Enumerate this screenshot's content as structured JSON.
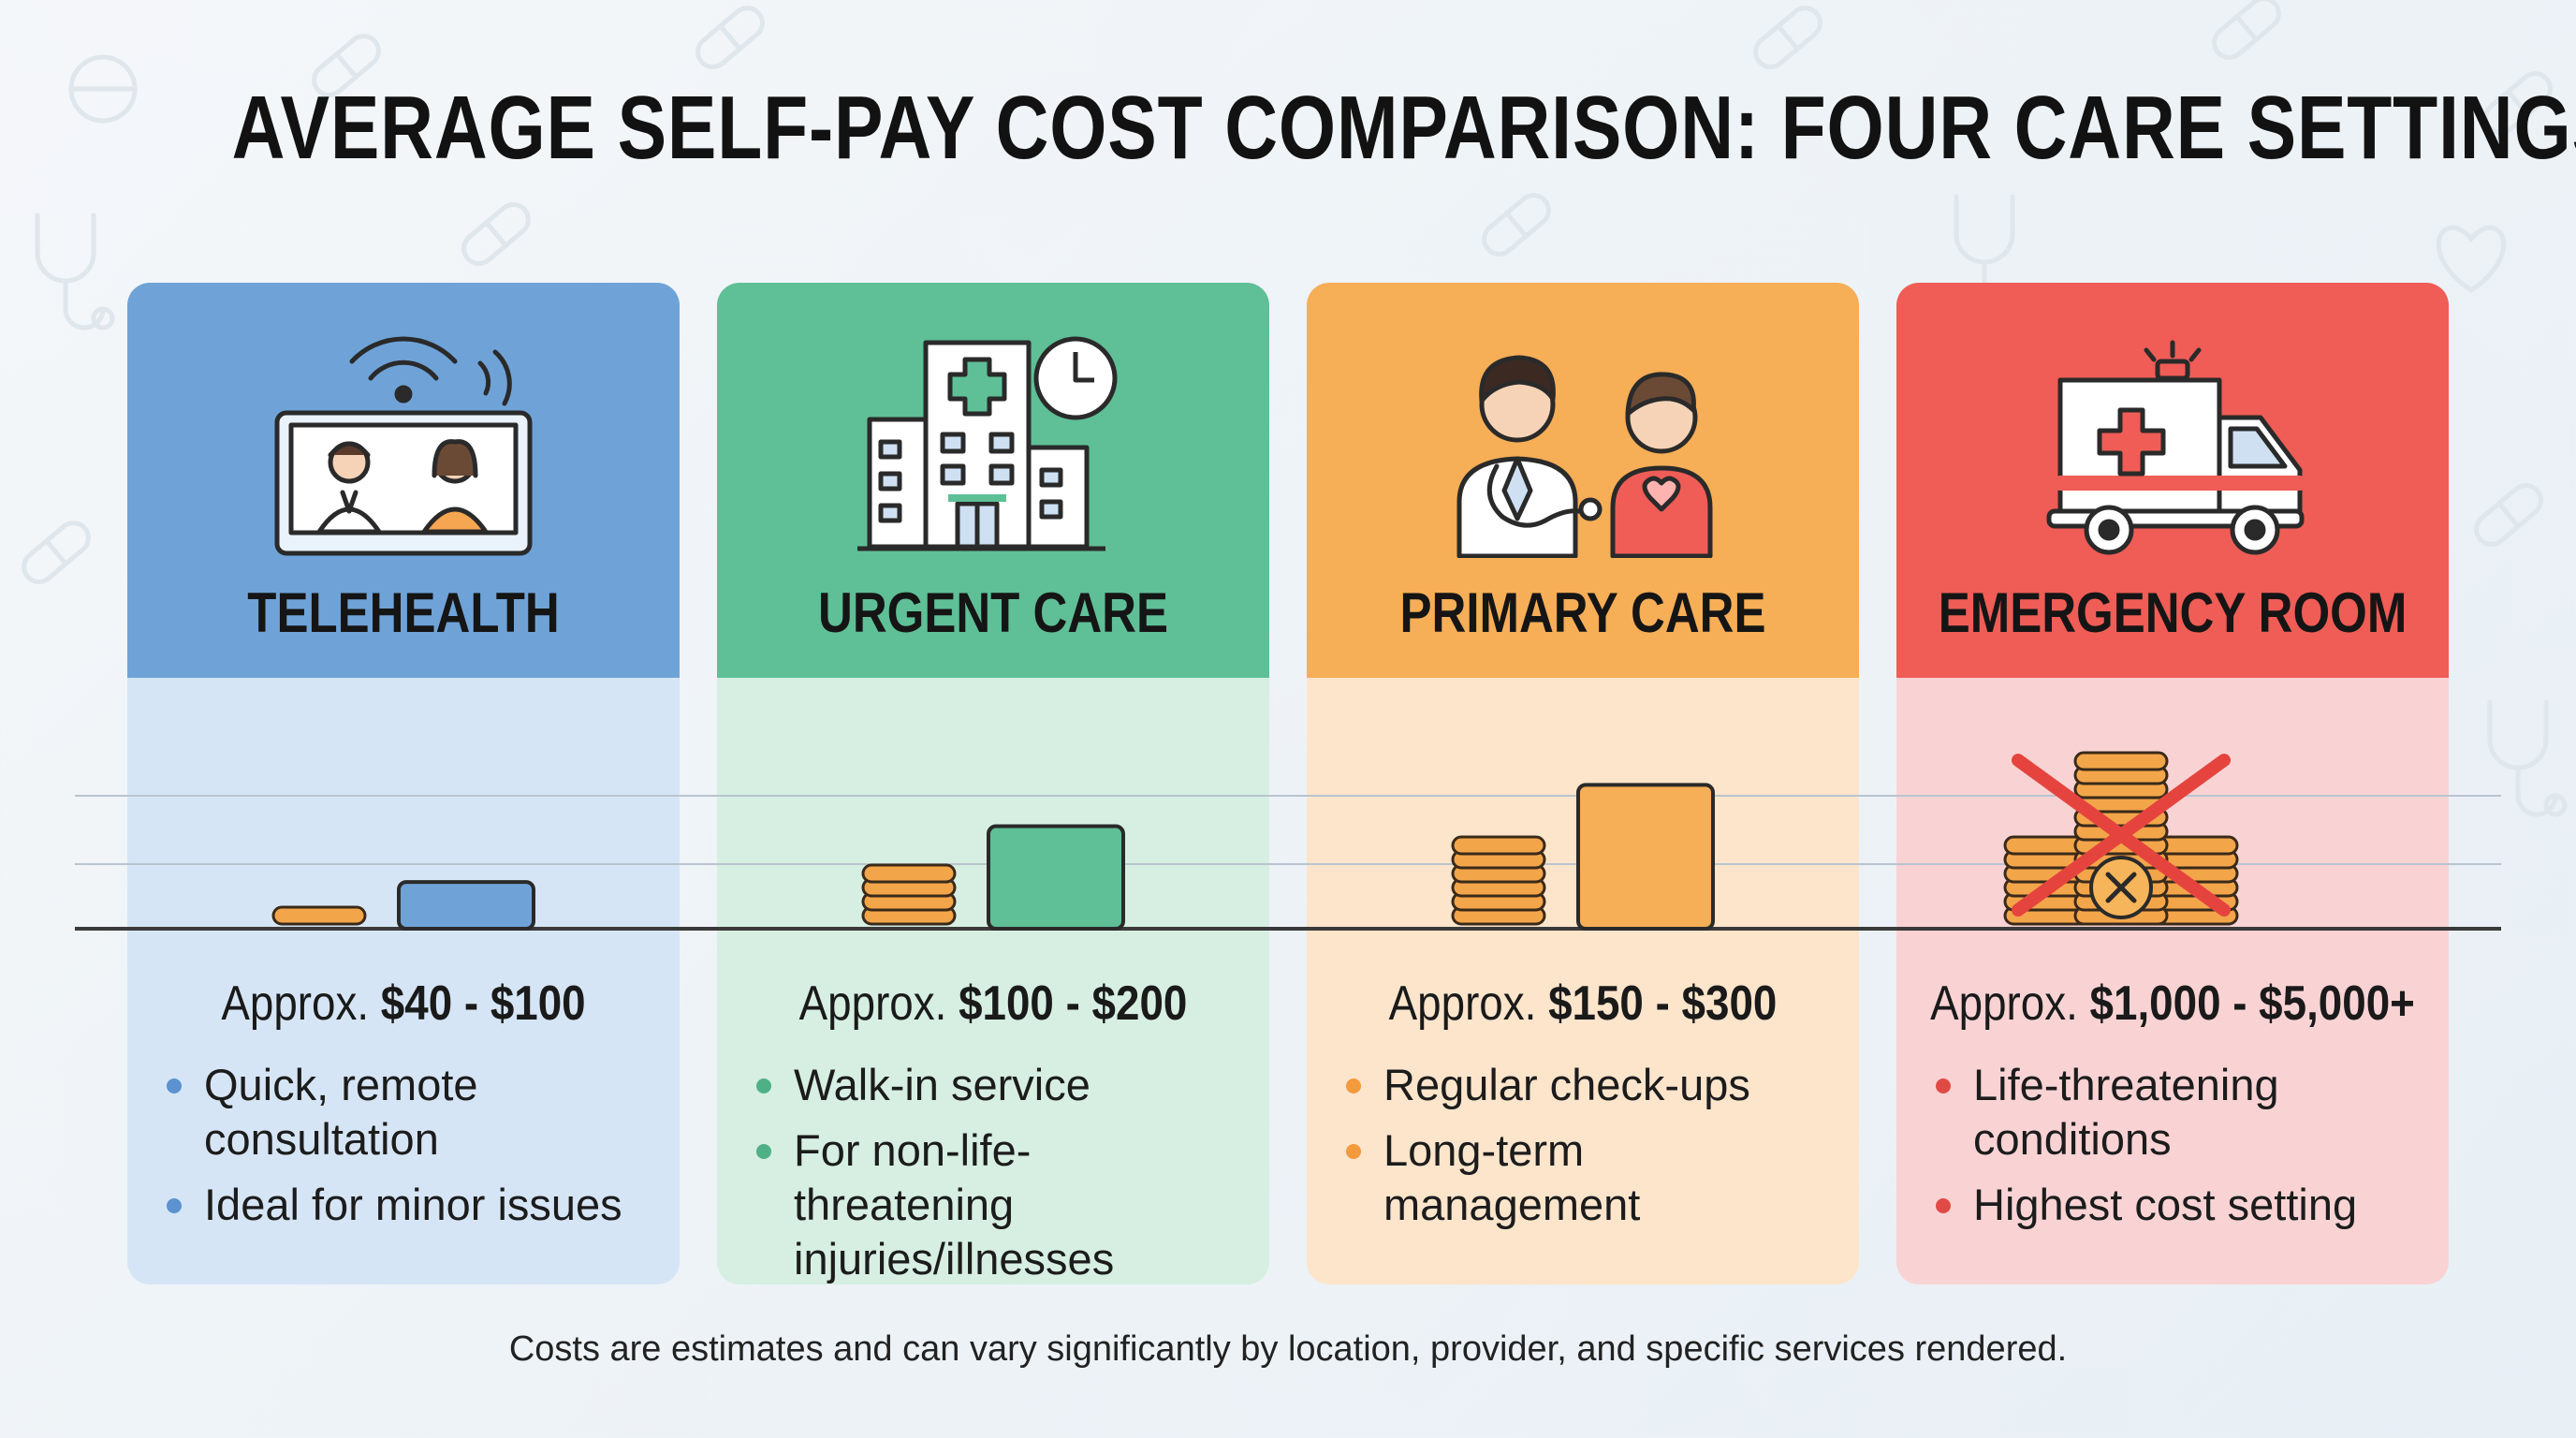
{
  "title": "AVERAGE SELF-PAY COST COMPARISON: FOUR CARE SETTINGS",
  "footnote": "Costs are estimates and can vary significantly by location, provider, and specific services rendered.",
  "cards": [
    {
      "label": "TELEHEALTH",
      "icon": "telehealth-monitor-icon",
      "price_prefix": "Approx.",
      "price": "$40 - $100",
      "bullets": [
        "Quick, remote consultation",
        "Ideal for minor issues"
      ],
      "colors": {
        "head": "#6fa3d8",
        "body": "#d6e5f5",
        "accent": "#6fa3d8",
        "bullet": "#5b92cf"
      }
    },
    {
      "label": "URGENT CARE",
      "icon": "urgent-care-clinic-icon",
      "price_prefix": "Approx.",
      "price": "$100 - $200",
      "bullets": [
        "Walk-in service",
        "For non-life-threatening injuries/illnesses"
      ],
      "colors": {
        "head": "#5fbf97",
        "body": "#d6efe2",
        "accent": "#5fbf97",
        "bullet": "#4fb086"
      }
    },
    {
      "label": "PRIMARY CARE",
      "icon": "doctor-patient-icon",
      "price_prefix": "Approx.",
      "price": "$150 - $300",
      "bullets": [
        "Regular check-ups",
        "Long-term management"
      ],
      "colors": {
        "head": "#f6ae57",
        "body": "#fde5cc",
        "accent": "#f6ae57",
        "bullet": "#f29a3c"
      }
    },
    {
      "label": "EMERGENCY ROOM",
      "icon": "ambulance-icon",
      "price_prefix": "Approx.",
      "price": "$1,000 - $5,000+",
      "bullets": [
        "Life-threatening conditions",
        "Highest cost setting"
      ],
      "colors": {
        "head": "#ef5d56",
        "body": "#f9d3d4",
        "accent": "#ef5d56",
        "bullet": "#e04a45"
      }
    }
  ],
  "chart_data": {
    "type": "bar",
    "categories": [
      "TELEHEALTH",
      "URGENT CARE",
      "PRIMARY CARE",
      "EMERGENCY ROOM"
    ],
    "series": [
      {
        "values_min": [
          40,
          100,
          150,
          1000
        ],
        "values_max": [
          100,
          200,
          300,
          5000
        ]
      }
    ],
    "relative_bar_height": [
      0.26,
      0.57,
      0.8,
      null
    ],
    "coin_stack_levels": [
      1,
      4,
      6,
      12
    ],
    "emergency_marker": "crossed-out coin stack",
    "grid": true,
    "colors": [
      "#6fa3d8",
      "#5fbf97",
      "#f6ae57",
      "#ef5d56"
    ]
  }
}
